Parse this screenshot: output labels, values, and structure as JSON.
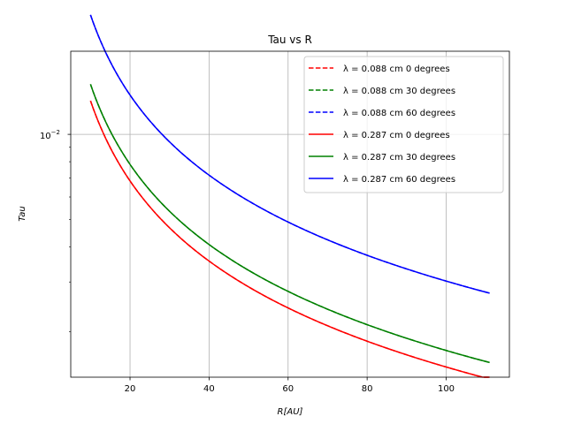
{
  "chart_data": {
    "type": "line",
    "title": "Tau vs R",
    "xlabel": "R[AU]",
    "ylabel": "Tau",
    "xlim": [
      5,
      116
    ],
    "ylim": [
      0.00138,
      0.0197
    ],
    "yscale": "log",
    "grid": true,
    "legend_position": "top-right",
    "x_ticks": [
      20,
      40,
      60,
      80,
      100
    ],
    "x_tick_labels": [
      "20",
      "40",
      "60",
      "80",
      "100"
    ],
    "y_ticks": [
      0.01
    ],
    "y_tick_labels": [
      "10",
      "−2"
    ],
    "model": {
      "exponent": -0.943
    },
    "x_range": [
      10,
      111
    ],
    "series": [
      {
        "name": "λ = 0.088 cm 0 degrees",
        "lambda": "0.088",
        "angle": "0",
        "color": "#ff0000",
        "dash": true,
        "y_at_10": 0.01315,
        "y_at_111": 0.00135
      },
      {
        "name": "λ = 0.088 cm 30 degrees",
        "lambda": "0.088",
        "angle": "30",
        "color": "#008000",
        "dash": true,
        "y_at_10": 0.01505,
        "y_at_111": 0.00155
      },
      {
        "name": "λ = 0.088 cm 60 degrees",
        "lambda": "0.088",
        "angle": "60",
        "color": "#0000ff",
        "dash": true,
        "y_at_10": 0.0265,
        "y_at_111": 0.00272
      },
      {
        "name": "λ = 0.287 cm 0 degrees",
        "lambda": "0.287",
        "angle": "0",
        "color": "#ff0000",
        "dash": false,
        "y_at_10": 0.01315,
        "y_at_111": 0.00135
      },
      {
        "name": "λ = 0.287 cm 30 degrees",
        "lambda": "0.287",
        "angle": "30",
        "color": "#008000",
        "dash": false,
        "y_at_10": 0.01505,
        "y_at_111": 0.00155
      },
      {
        "name": "λ = 0.287 cm 60 degrees",
        "lambda": "0.287",
        "angle": "60",
        "color": "#0000ff",
        "dash": false,
        "y_at_10": 0.0265,
        "y_at_111": 0.00272
      }
    ]
  }
}
